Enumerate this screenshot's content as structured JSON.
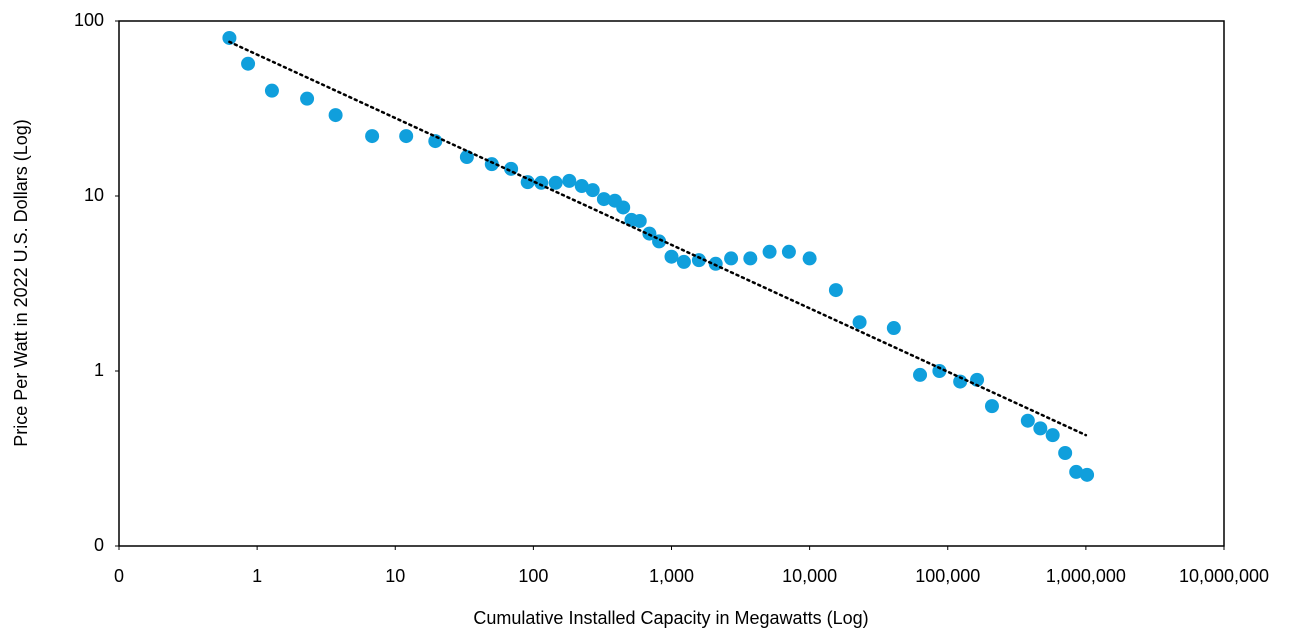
{
  "chart_data": {
    "type": "scatter",
    "x_label": "Cumulative Installed Capacity in Megawatts (Log)",
    "y_label": "Price Per Watt in 2022 U.S. Dollars (Log)",
    "x_log": true,
    "y_log": true,
    "grid": false,
    "xlim": [
      0.1,
      10000000
    ],
    "ylim": [
      0.1,
      100
    ],
    "xticks": [
      {
        "value": 0.1,
        "label": "0"
      },
      1,
      10,
      100,
      {
        "value": 1000,
        "label": "1,000"
      },
      {
        "value": 10000,
        "label": "10,000"
      },
      {
        "value": 100000,
        "label": "100,000"
      },
      {
        "value": 1000000,
        "label": "1,000,000"
      },
      {
        "value": 10000000,
        "label": "10,000,000"
      }
    ],
    "yticks": [
      {
        "value": 0.1,
        "label": "0"
      },
      1,
      10,
      100
    ],
    "series": [
      {
        "color": "#109fdc",
        "x": [
          0.63,
          0.86,
          1.28,
          2.3,
          3.7,
          6.8,
          12,
          19.5,
          33,
          50,
          69,
          91,
          114,
          145,
          182,
          224,
          269,
          324,
          389,
          447,
          513,
          589,
          692,
          813,
          1000,
          1230,
          1580,
          2090,
          2700,
          3720,
          5130,
          7080,
          10000,
          15500,
          23000,
          40700,
          63000,
          87000,
          123000,
          163000,
          209000,
          380000,
          468000,
          575000,
          708000,
          851000,
          1020000
        ],
        "values": [
          80,
          57,
          40,
          36,
          29,
          22,
          22,
          20.6,
          16.7,
          15.2,
          14.3,
          12,
          11.9,
          11.9,
          12.2,
          11.4,
          10.8,
          9.6,
          9.4,
          8.6,
          7.3,
          7.2,
          6.1,
          5.5,
          4.5,
          4.2,
          4.3,
          4.1,
          4.4,
          4.4,
          4.8,
          4.8,
          4.4,
          2.9,
          1.9,
          1.76,
          0.95,
          1.0,
          0.87,
          0.89,
          0.63,
          0.52,
          0.47,
          0.43,
          0.34,
          0.265,
          0.255
        ]
      }
    ],
    "trendline": {
      "color": "#000000",
      "x": [
        0.63,
        1000000
      ],
      "values": [
        76,
        0.43
      ]
    }
  }
}
